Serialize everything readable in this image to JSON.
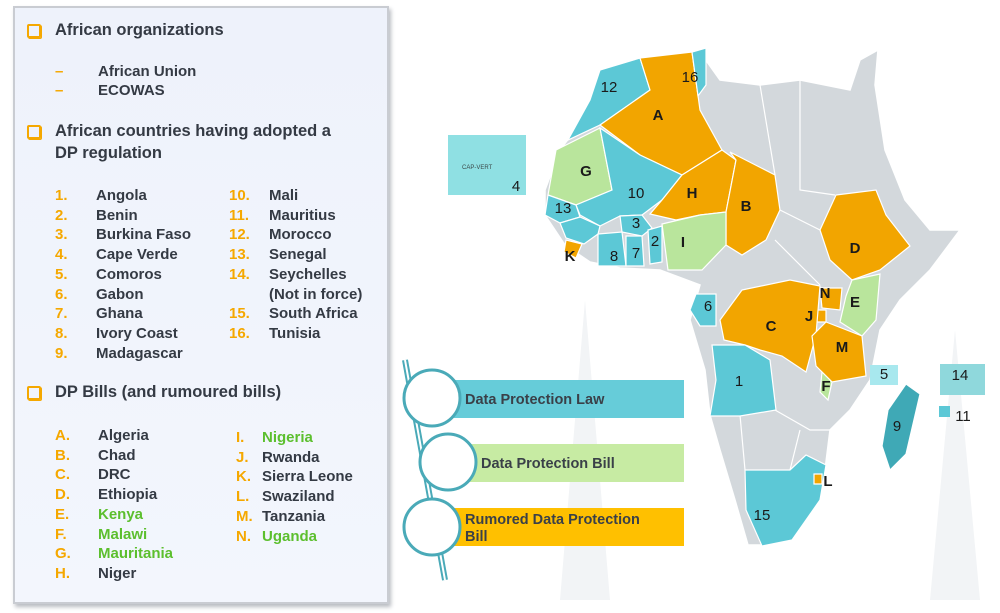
{
  "organizations": {
    "heading": "African organizations",
    "items": [
      "African Union",
      "ECOWAS"
    ]
  },
  "adopted": {
    "heading_line1": "African countries having adopted a",
    "heading_line2": "DP regulation",
    "col1": [
      {
        "num": "1.",
        "name": "Angola"
      },
      {
        "num": "2.",
        "name": "Benin"
      },
      {
        "num": "3.",
        "name": "Burkina Faso"
      },
      {
        "num": "4.",
        "name": "Cape Verde"
      },
      {
        "num": "5.",
        "name": "Comoros"
      },
      {
        "num": "6.",
        "name": "Gabon"
      },
      {
        "num": "7.",
        "name": "Ghana"
      },
      {
        "num": "8.",
        "name": "Ivory Coast"
      },
      {
        "num": "9.",
        "name": "Madagascar"
      }
    ],
    "col2": [
      {
        "num": "10.",
        "name": "Mali"
      },
      {
        "num": "11.",
        "name": "Mauritius"
      },
      {
        "num": "12.",
        "name": "Morocco"
      },
      {
        "num": "13.",
        "name": "Senegal"
      },
      {
        "num": "14.",
        "name": "Seychelles"
      },
      {
        "num": "",
        "name": "(Not in force)"
      },
      {
        "num": "15.",
        "name": "South Africa"
      },
      {
        "num": "16.",
        "name": "Tunisia"
      }
    ]
  },
  "bills": {
    "heading": "DP Bills (and rumoured bills)",
    "col1": [
      {
        "num": "A.",
        "name": "Algeria",
        "status": "rumored"
      },
      {
        "num": "B.",
        "name": "Chad",
        "status": "rumored"
      },
      {
        "num": "C.",
        "name": "DRC",
        "status": "rumored"
      },
      {
        "num": "D.",
        "name": "Ethiopia",
        "status": "rumored"
      },
      {
        "num": "E.",
        "name": "Kenya",
        "status": "bill"
      },
      {
        "num": "F.",
        "name": "Malawi",
        "status": "bill"
      },
      {
        "num": "G.",
        "name": "Mauritania",
        "status": "bill"
      },
      {
        "num": "H.",
        "name": "Niger",
        "status": "rumored"
      }
    ],
    "col2": [
      {
        "num": "I.",
        "name": "Nigeria",
        "status": "bill"
      },
      {
        "num": "J.",
        "name": "Rwanda",
        "status": "rumored"
      },
      {
        "num": "K.",
        "name": "Sierra Leone",
        "status": "rumored"
      },
      {
        "num": "L.",
        "name": "Swaziland",
        "status": "rumored"
      },
      {
        "num": "M.",
        "name": "Tanzania",
        "status": "rumored"
      },
      {
        "num": "N.",
        "name": "Uganda",
        "status": "bill"
      }
    ]
  },
  "legend": {
    "law": "Data Protection Law",
    "bill": "Data Protection Bill",
    "rumored_line1": "Rumored Data Protection",
    "rumored_line2": "Bill"
  },
  "map": {
    "inset_cape_verde_text": "CAP-VERT",
    "labels": {
      "morocco": "12",
      "algeria": "A",
      "tunisia": "16",
      "mauritania": "G",
      "mali": "10",
      "niger": "H",
      "chad": "B",
      "senegal": "13",
      "burkina": "3",
      "benin": "2",
      "nigeria": "I",
      "ivory": "8",
      "ghana": "7",
      "sierra": "K",
      "ethiopia": "D",
      "gabon": "6",
      "uganda": "N",
      "kenya": "E",
      "rwanda": "J",
      "drc": "C",
      "tanzania": "M",
      "angola": "1",
      "malawi": "F",
      "comoros": "5",
      "seychelles": "14",
      "madagascar": "9",
      "mauritius": "11",
      "swaziland": "L",
      "southafrica": "15",
      "capeverde": "4"
    }
  },
  "colors": {
    "law": "#5cc8d6",
    "bill": "#b9e59c",
    "rumored": "#f2a500",
    "other": "#d3d8dc",
    "legend_law": "#66ccd9",
    "legend_bill": "#c7eba3",
    "legend_rumored": "#ffc000",
    "number_orange": "#f5a800",
    "green_text": "#5cbf2e"
  }
}
